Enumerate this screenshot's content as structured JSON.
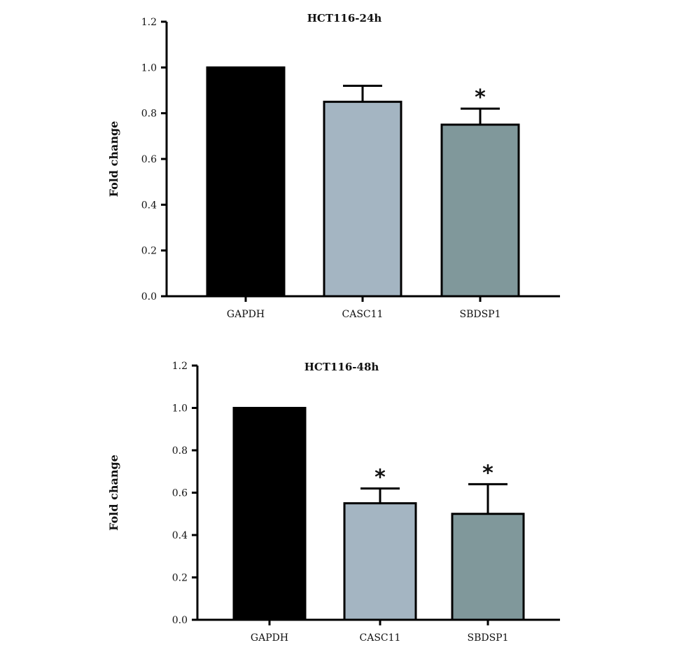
{
  "chart_data": [
    {
      "type": "bar",
      "title": "HCT116-24h",
      "xlabel": "",
      "ylabel": "Fold change",
      "ylim": [
        0,
        1.2
      ],
      "yticks": [
        "0.0",
        "0.2",
        "0.4",
        "0.6",
        "0.8",
        "1.0",
        "1.2"
      ],
      "yticks_values": [
        0,
        0.2,
        0.4,
        0.6,
        0.8,
        1.0,
        1.2
      ],
      "categories": [
        "GAPDH",
        "CASC11",
        "SBDSP1"
      ],
      "values": [
        1.0,
        0.85,
        0.75
      ],
      "errors": [
        0,
        0.07,
        0.07
      ],
      "significance": [
        "",
        "",
        "*"
      ],
      "colors": [
        "#000000",
        "#a4b5c2",
        "#80989b"
      ],
      "grid": false
    },
    {
      "type": "bar",
      "title": "HCT116-48h",
      "xlabel": "",
      "ylabel": "Fold change",
      "ylim": [
        0,
        1.2
      ],
      "yticks": [
        "0.0",
        "0.2",
        "0.4",
        "0.6",
        "0.8",
        "1.0",
        "1.2"
      ],
      "yticks_values": [
        0,
        0.2,
        0.4,
        0.6,
        0.8,
        1.0,
        1.2
      ],
      "categories": [
        "GAPDH",
        "CASC11",
        "SBDSP1"
      ],
      "values": [
        1.0,
        0.55,
        0.5
      ],
      "errors": [
        0,
        0.07,
        0.14
      ],
      "significance": [
        "",
        "*",
        "*"
      ],
      "colors": [
        "#000000",
        "#a4b5c2",
        "#80989b"
      ],
      "grid": false
    }
  ]
}
